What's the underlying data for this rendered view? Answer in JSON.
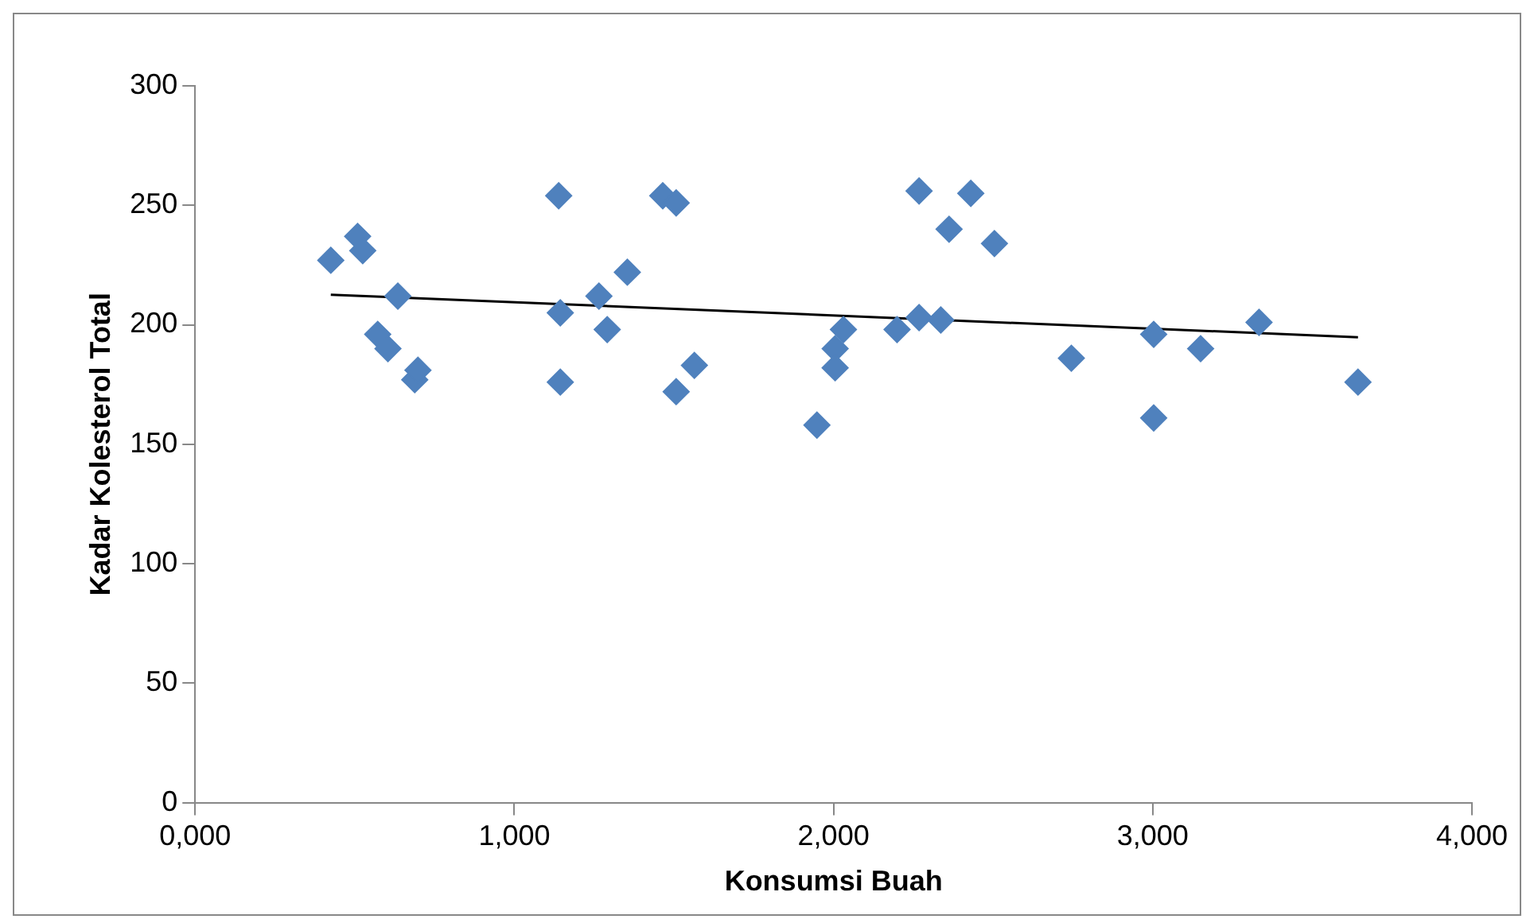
{
  "chart_data": {
    "type": "scatter",
    "xlabel": "Konsumsi Buah",
    "ylabel": "Kadar Kolesterol Total",
    "xlim": [
      0,
      4000
    ],
    "xticks": [
      {
        "value": 0,
        "label": "0,000"
      },
      {
        "value": 1000,
        "label": "1,000"
      },
      {
        "value": 2000,
        "label": "2,000"
      },
      {
        "value": 3000,
        "label": "3,000"
      },
      {
        "value": 4000,
        "label": "4,000"
      }
    ],
    "ylim": [
      0,
      300
    ],
    "yticks": [
      0,
      50,
      100,
      150,
      200,
      250,
      300
    ],
    "grid": false,
    "legend": false,
    "marker": "diamond",
    "series": [
      {
        "color": "#4f81bd",
        "x": [
          425,
          509,
          525,
          572,
          604,
          635,
          688,
          698,
          1139,
          1144,
          1144,
          1265,
          1291,
          1354,
          1465,
          1507,
          1507,
          1564,
          1948,
          2005,
          2005,
          2031,
          2199,
          2268,
          2268,
          2336,
          2362,
          2430,
          2504,
          2745,
          3003,
          3003,
          3150,
          3333,
          3643
        ],
        "values": [
          227,
          237,
          231,
          196,
          190,
          212,
          177,
          181,
          254,
          205,
          176,
          212,
          198,
          222,
          254,
          251,
          172,
          183,
          158,
          190,
          182,
          198,
          198,
          203,
          256,
          202,
          240,
          255,
          234,
          186,
          196,
          161,
          190,
          201,
          176
        ]
      },
      {
        "type": "line",
        "color": "#000000",
        "marker": "none",
        "line_style": "solid",
        "x": [
          425,
          3643
        ],
        "values": [
          212.6,
          194.8
        ]
      }
    ]
  }
}
